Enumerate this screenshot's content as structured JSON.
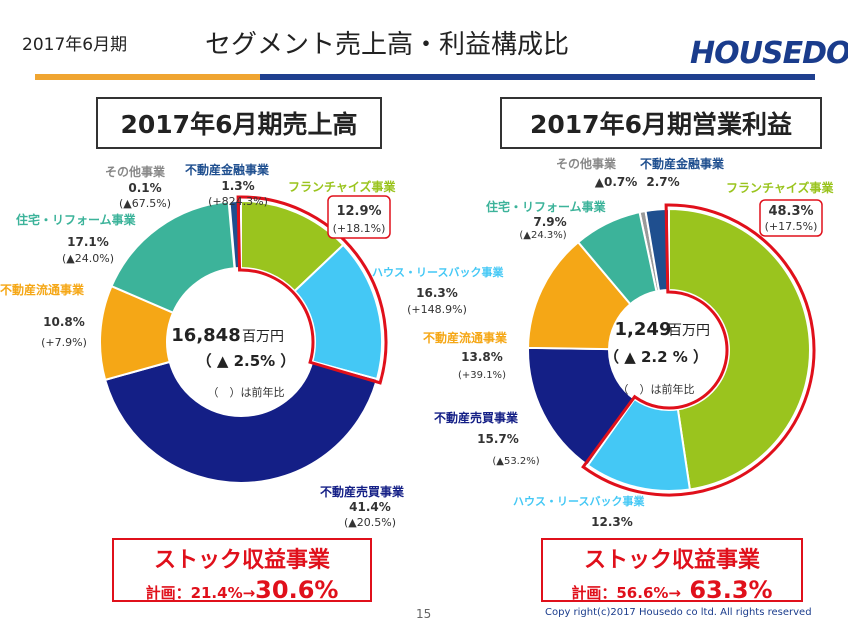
{
  "header": {
    "period": "2017年6月期",
    "title": "セグメント売上高・利益構成比",
    "logo": "HOUSEDO"
  },
  "colors": {
    "franchise": "#9ac41e",
    "house": "#44c8f5",
    "trading": "#141f86",
    "circulation": "#f5a716",
    "reform": "#3cb39a",
    "other": "#9a9a9a",
    "finance": "#1f4f8f",
    "highlight": "#e0101b"
  },
  "chart_data": [
    {
      "type": "pie",
      "title": "2017年6月期売上高",
      "center": {
        "value": "16,848",
        "unit": "百万円",
        "growth": "（ ▲ 2.5% ）",
        "note": "（　）は前年比"
      },
      "slices": [
        {
          "name": "フランチャイズ事業",
          "value": 12.9,
          "share": "12.9%",
          "growth": "(+18.1%)",
          "color": "#9ac41e"
        },
        {
          "name": "ハウス・リースバック事業",
          "value": 16.3,
          "share": "16.3%",
          "growth": "(+148.9%)",
          "color": "#44c8f5"
        },
        {
          "name": "不動産売買事業",
          "value": 41.4,
          "share": "41.4%",
          "growth": "(▲20.5%)",
          "color": "#141f86"
        },
        {
          "name": "不動産流通事業",
          "value": 10.8,
          "share": "10.8%",
          "growth": "(+7.9%)",
          "color": "#f5a716"
        },
        {
          "name": "住宅・リフォーム事業",
          "value": 17.1,
          "share": "17.1%",
          "growth": "(▲24.0%)",
          "color": "#3cb39a"
        },
        {
          "name": "その他事業",
          "value": 0.1,
          "share": "0.1%",
          "growth": "(▲67.5%)",
          "color": "#9a9a9a"
        },
        {
          "name": "不動産金融事業",
          "value": 1.3,
          "share": "1.3%",
          "growth": "(+824.3%)",
          "color": "#1f4f8f"
        }
      ],
      "stock": {
        "heading": "ストック収益事業",
        "plan_label": "計画：21.4%→",
        "plan_result": "30.6%"
      }
    },
    {
      "type": "pie",
      "title": "2017年6月期営業利益",
      "center": {
        "value": "1,249",
        "unit": "百万円",
        "growth": "（ ▲ 2.2 % ）",
        "note": "（　）は前年比"
      },
      "slices": [
        {
          "name": "フランチャイズ事業",
          "value": 48.3,
          "share": "48.3%",
          "growth": "(+17.5%)",
          "color": "#9ac41e"
        },
        {
          "name": "ハウス・リースバック事業",
          "value": 12.3,
          "share": "12.3%",
          "growth": "",
          "color": "#44c8f5"
        },
        {
          "name": "不動産売買事業",
          "value": 15.7,
          "share": "15.7%",
          "growth": "(▲53.2%)",
          "color": "#141f86"
        },
        {
          "name": "不動産流通事業",
          "value": 13.8,
          "share": "13.8%",
          "growth": "(+39.1%)",
          "color": "#f5a716"
        },
        {
          "name": "住宅・リフォーム事業",
          "value": 7.9,
          "share": "7.9%",
          "growth": "(▲24.3%)",
          "color": "#3cb39a"
        },
        {
          "name": "その他事業",
          "value": 0.7,
          "share": "▲0.7%",
          "growth": "",
          "color": "#9a9a9a"
        },
        {
          "name": "不動産金融事業",
          "value": 2.7,
          "share": "2.7%",
          "growth": "",
          "color": "#1f4f8f"
        }
      ],
      "stock": {
        "heading": "ストック収益事業",
        "plan_label": "計画：56.6%→",
        "plan_result": " 63.3%"
      }
    }
  ],
  "footer": {
    "page": "15",
    "copyright": "Copy right(c)2017 Housedo co ltd. All rights reserved"
  }
}
